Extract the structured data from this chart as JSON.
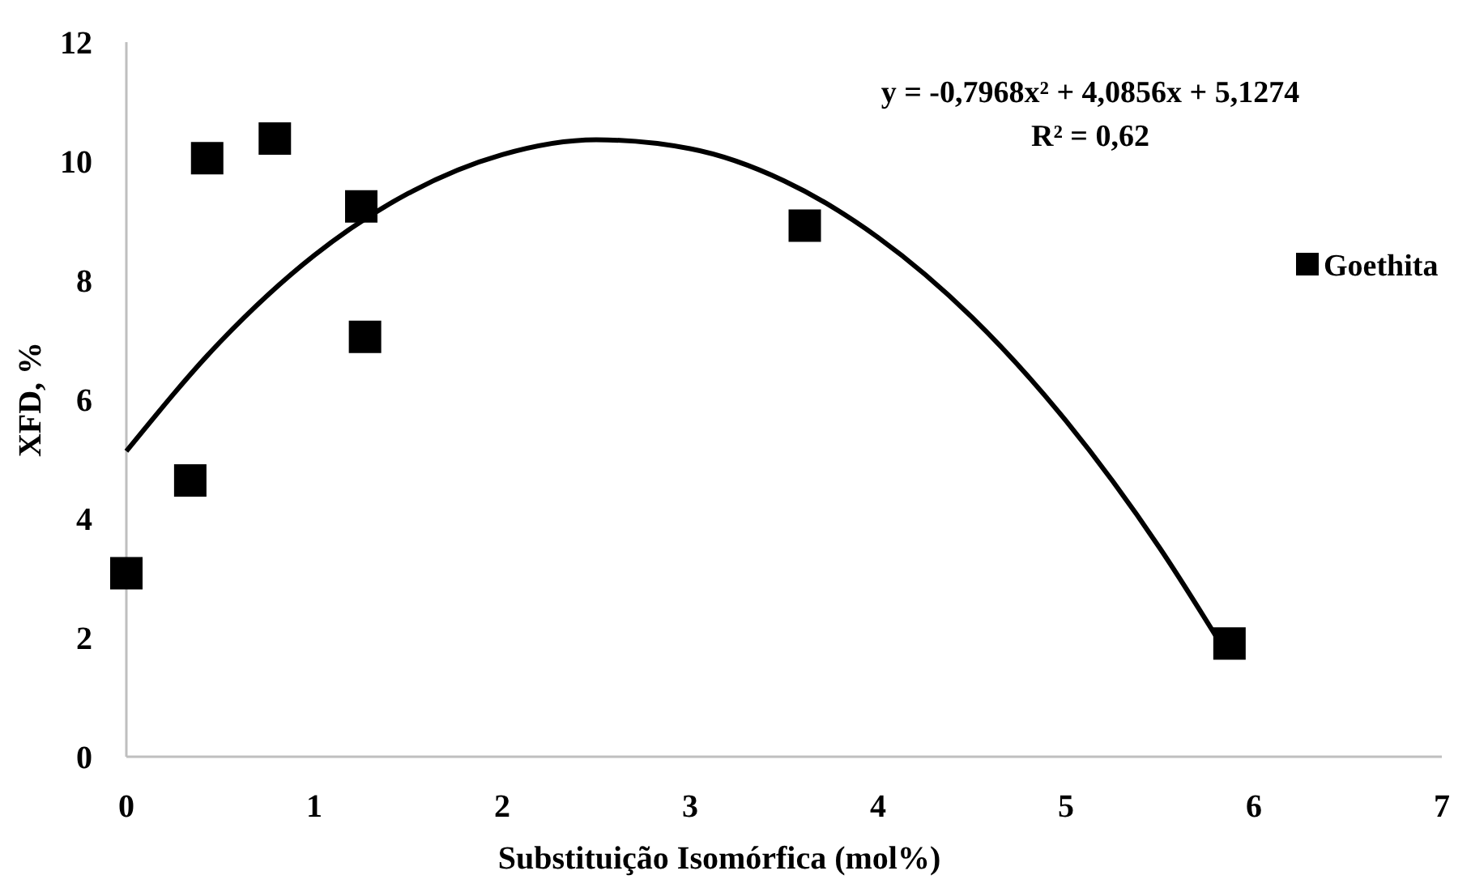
{
  "chart_data": {
    "type": "scatter",
    "xlabel": "Substituição Isomórfica (mol%)",
    "ylabel": "XFD, %",
    "annotations": [
      "y = -0,7968x² + 4,0856x + 5,1274",
      "R² = 0,62"
    ],
    "xlim": [
      0,
      7
    ],
    "xticks": [
      0,
      1,
      2,
      3,
      4,
      5,
      6,
      7
    ],
    "ylim": [
      0,
      12
    ],
    "yticks": [
      0,
      2,
      4,
      6,
      8,
      10,
      12
    ],
    "grid": false,
    "legend": "right",
    "marker": "square",
    "series": [
      {
        "name": "Goethita",
        "color": "#000000",
        "x": [
          0,
          0.34,
          0.43,
          0.79,
          1.25,
          1.27,
          3.61,
          5.87
        ],
        "values": [
          3.08,
          4.64,
          10.05,
          10.38,
          9.24,
          7.05,
          8.92,
          1.9
        ]
      },
      {
        "type": "line",
        "color": "#000000",
        "line_style": "solid",
        "marker": "none",
        "x": [
          0,
          0.5,
          1,
          1.5,
          2,
          2.5,
          3,
          3.5,
          4,
          4.5,
          5,
          5.5,
          5.85
        ],
        "values": [
          5.13,
          6.97,
          8.42,
          9.46,
          10.11,
          10.36,
          10.21,
          9.67,
          8.72,
          7.38,
          5.64,
          3.5,
          1.76
        ]
      }
    ]
  }
}
